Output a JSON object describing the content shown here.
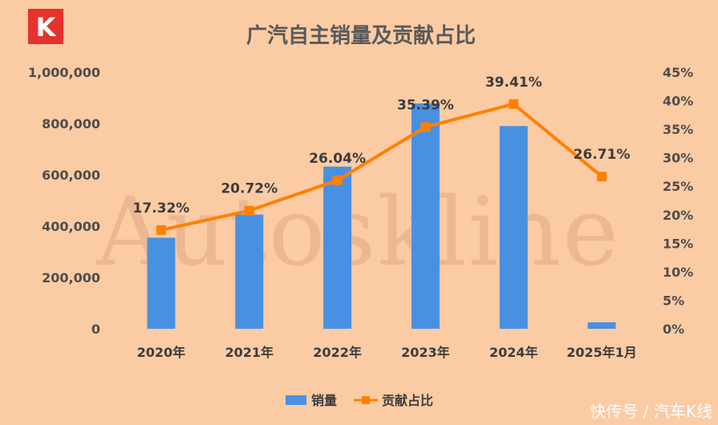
{
  "logo": {
    "text": "K"
  },
  "watermark": "Autoskline",
  "footer": "快传号 / 汽车K线",
  "colors": {
    "bar": "#4A90E2",
    "line": "#FF8000",
    "background": "#FBCBA4",
    "logo": "#E5322D"
  },
  "chart_data": {
    "type": "bar+line",
    "title": "广汽自主销量及贡献占比",
    "categories": [
      "2020年",
      "2021年",
      "2022年",
      "2023年",
      "2024年",
      "2025年1月"
    ],
    "series": [
      {
        "name": "销量",
        "type": "bar",
        "axis": "left",
        "values": [
          355000,
          445000,
          632000,
          878000,
          790000,
          25000
        ]
      },
      {
        "name": "贡献占比",
        "type": "line",
        "axis": "right",
        "values": [
          17.32,
          20.72,
          26.04,
          35.39,
          39.41,
          26.71
        ],
        "labels": [
          "17.32%",
          "20.72%",
          "26.04%",
          "35.39%",
          "39.41%",
          "26.71%"
        ]
      }
    ],
    "y_left": {
      "ylim": [
        0,
        1000000
      ],
      "ticks": [
        "0",
        "200,000",
        "400,000",
        "600,000",
        "800,000",
        "1,000,000"
      ]
    },
    "y_right": {
      "ylim": [
        0,
        45
      ],
      "ticks": [
        "0%",
        "5%",
        "10%",
        "15%",
        "20%",
        "25%",
        "30%",
        "35%",
        "40%",
        "45%"
      ]
    },
    "grid": false,
    "legend": "bottom-center"
  }
}
